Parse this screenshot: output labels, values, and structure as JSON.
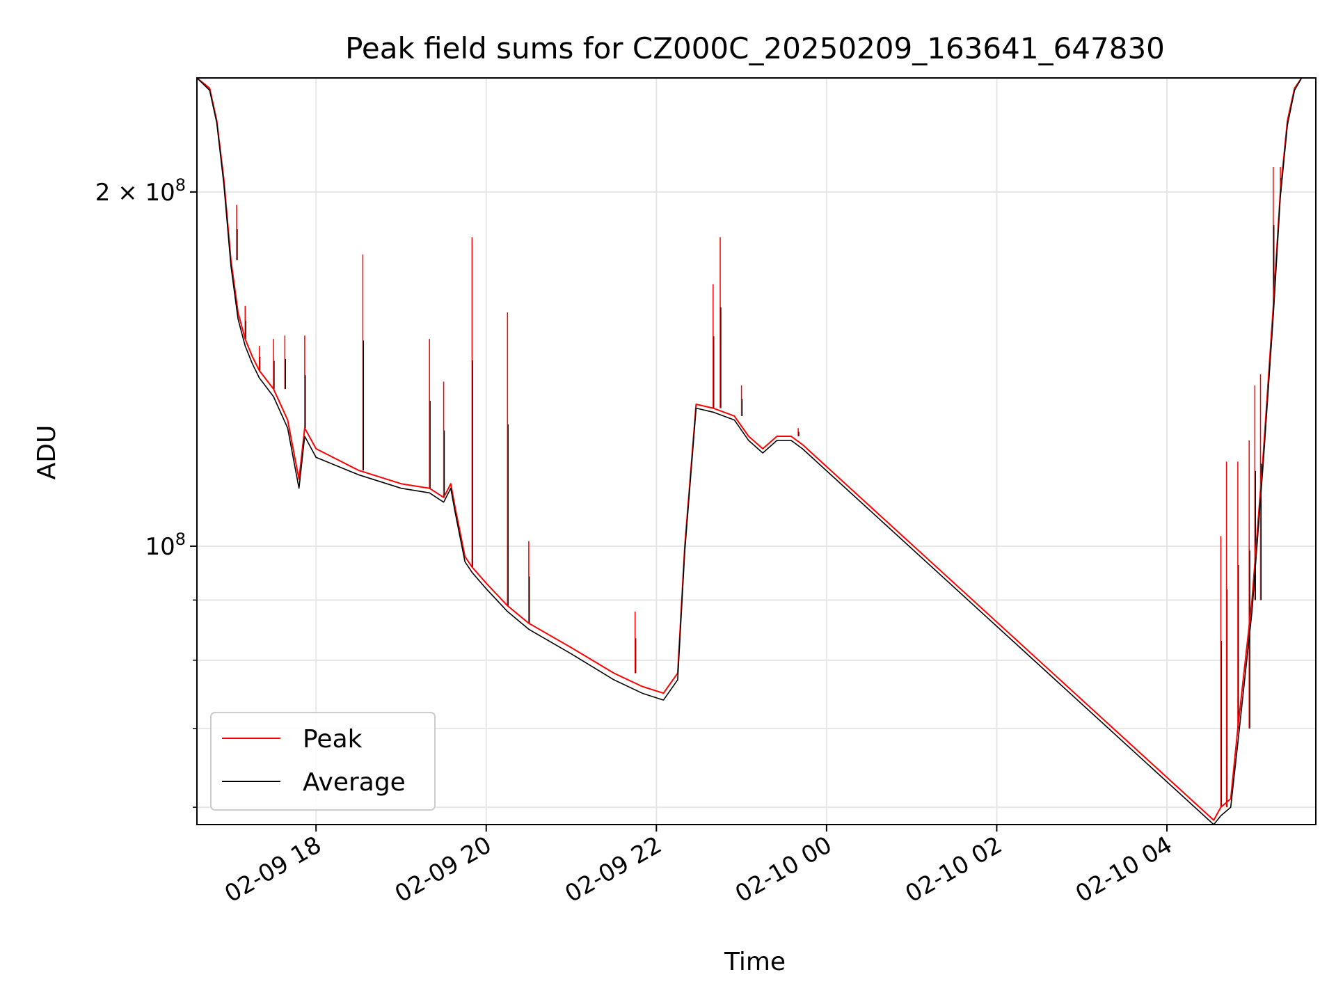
{
  "chart_data": {
    "type": "line",
    "title": "Peak field sums for CZ000C_20250209_163641_647830",
    "xlabel": "Time",
    "ylabel": "ADU",
    "yscale": "log",
    "ylim": [
      58000000,
      250000000
    ],
    "xlim": [
      "2025-02-09 16:36",
      "2025-02-10 05:45"
    ],
    "grid": true,
    "legend_position": "lower-left",
    "x_ticks": [
      {
        "t": "2025-02-09 18:00",
        "label": "02-09 18"
      },
      {
        "t": "2025-02-09 20:00",
        "label": "02-09 20"
      },
      {
        "t": "2025-02-09 22:00",
        "label": "02-09 22"
      },
      {
        "t": "2025-02-10 00:00",
        "label": "02-10 00"
      },
      {
        "t": "2025-02-10 02:00",
        "label": "02-10 02"
      },
      {
        "t": "2025-02-10 04:00",
        "label": "02-10 04"
      }
    ],
    "y_ticks_major": [
      {
        "value": 100000000,
        "label_base": "10",
        "label_exp": "8"
      },
      {
        "value": 200000000,
        "label_base": "2 × 10",
        "label_exp": "8"
      }
    ],
    "y_ticks_minor": [
      60000000,
      70000000,
      80000000,
      90000000
    ],
    "series": [
      {
        "name": "Peak",
        "color": "#ff0000",
        "x": [
          "2025-02-09 16:36",
          "2025-02-09 16:45",
          "2025-02-09 16:50",
          "2025-02-09 16:55",
          "2025-02-09 17:00",
          "2025-02-09 17:05",
          "2025-02-09 17:10",
          "2025-02-09 17:15",
          "2025-02-09 17:20",
          "2025-02-09 17:30",
          "2025-02-09 17:40",
          "2025-02-09 17:45",
          "2025-02-09 17:48",
          "2025-02-09 17:52",
          "2025-02-09 18:00",
          "2025-02-09 18:30",
          "2025-02-09 19:00",
          "2025-02-09 19:20",
          "2025-02-09 19:30",
          "2025-02-09 19:35",
          "2025-02-09 19:38",
          "2025-02-09 19:45",
          "2025-02-09 19:50",
          "2025-02-09 20:00",
          "2025-02-09 20:15",
          "2025-02-09 20:30",
          "2025-02-09 21:00",
          "2025-02-09 21:30",
          "2025-02-09 21:50",
          "2025-02-09 22:05",
          "2025-02-09 22:15",
          "2025-02-09 22:20",
          "2025-02-09 22:28",
          "2025-02-09 22:40",
          "2025-02-09 22:55",
          "2025-02-09 23:05",
          "2025-02-09 23:15",
          "2025-02-09 23:25",
          "2025-02-09 23:35",
          "2025-02-09 23:43",
          "2025-02-10 04:33",
          "2025-02-10 04:38",
          "2025-02-10 04:45",
          "2025-02-10 04:50",
          "2025-02-10 05:00",
          "2025-02-10 05:08",
          "2025-02-10 05:15",
          "2025-02-10 05:20",
          "2025-02-10 05:25",
          "2025-02-10 05:30",
          "2025-02-10 05:35",
          "2025-02-10 05:45"
        ],
        "values": [
          250000000,
          245000000,
          230000000,
          205000000,
          175000000,
          158000000,
          150000000,
          145000000,
          141000000,
          136000000,
          128000000,
          119000000,
          114000000,
          126000000,
          121000000,
          116000000,
          113000000,
          112000000,
          110000000,
          113000000,
          108000000,
          98000000,
          96000000,
          93000000,
          89000000,
          86000000,
          82000000,
          78000000,
          76000000,
          75000000,
          78000000,
          100000000,
          132000000,
          131000000,
          129000000,
          124000000,
          121000000,
          124000000,
          124000000,
          122000000,
          58500000,
          60000000,
          61000000,
          70000000,
          90000000,
          120000000,
          160000000,
          200000000,
          230000000,
          245000000,
          250000000,
          250000000
        ]
      },
      {
        "name": "Average",
        "color": "#000000",
        "x": [
          "2025-02-09 16:36",
          "2025-02-09 16:45",
          "2025-02-09 16:50",
          "2025-02-09 16:55",
          "2025-02-09 17:00",
          "2025-02-09 17:05",
          "2025-02-09 17:10",
          "2025-02-09 17:15",
          "2025-02-09 17:20",
          "2025-02-09 17:30",
          "2025-02-09 17:40",
          "2025-02-09 17:45",
          "2025-02-09 17:48",
          "2025-02-09 17:52",
          "2025-02-09 18:00",
          "2025-02-09 18:30",
          "2025-02-09 19:00",
          "2025-02-09 19:20",
          "2025-02-09 19:30",
          "2025-02-09 19:35",
          "2025-02-09 19:38",
          "2025-02-09 19:45",
          "2025-02-09 19:50",
          "2025-02-09 20:00",
          "2025-02-09 20:15",
          "2025-02-09 20:30",
          "2025-02-09 21:00",
          "2025-02-09 21:30",
          "2025-02-09 21:50",
          "2025-02-09 22:05",
          "2025-02-09 22:15",
          "2025-02-09 22:20",
          "2025-02-09 22:28",
          "2025-02-09 22:40",
          "2025-02-09 22:55",
          "2025-02-09 23:05",
          "2025-02-09 23:15",
          "2025-02-09 23:25",
          "2025-02-09 23:35",
          "2025-02-09 23:43",
          "2025-02-10 04:33",
          "2025-02-10 04:38",
          "2025-02-10 04:45",
          "2025-02-10 04:50",
          "2025-02-10 05:00",
          "2025-02-10 05:08",
          "2025-02-10 05:15",
          "2025-02-10 05:20",
          "2025-02-10 05:25",
          "2025-02-10 05:30",
          "2025-02-10 05:35",
          "2025-02-10 05:45"
        ],
        "values": [
          250000000,
          244000000,
          229000000,
          203000000,
          173000000,
          156000000,
          148000000,
          143000000,
          139000000,
          134000000,
          126000000,
          117000000,
          112000000,
          124000000,
          119000000,
          115000000,
          112000000,
          111000000,
          109000000,
          112000000,
          107000000,
          97000000,
          95000000,
          92000000,
          88000000,
          85000000,
          81000000,
          77000000,
          75000000,
          74000000,
          77000000,
          99000000,
          131000000,
          130000000,
          128000000,
          123000000,
          120000000,
          123000000,
          123000000,
          121000000,
          58000000,
          59000000,
          60000000,
          68000000,
          88000000,
          118000000,
          157000000,
          198000000,
          228000000,
          244000000,
          250000000,
          250000000
        ]
      }
    ],
    "spikes": [
      {
        "t": "2025-02-09 17:04",
        "value": 195000000
      },
      {
        "t": "2025-02-09 17:10",
        "value": 160000000
      },
      {
        "t": "2025-02-09 17:20",
        "value": 148000000
      },
      {
        "t": "2025-02-09 17:30",
        "value": 150000000
      },
      {
        "t": "2025-02-09 17:38",
        "value": 151000000
      },
      {
        "t": "2025-02-09 17:52",
        "value": 151000000
      },
      {
        "t": "2025-02-09 18:33",
        "value": 177000000
      },
      {
        "t": "2025-02-09 19:20",
        "value": 150000000
      },
      {
        "t": "2025-02-09 19:30",
        "value": 138000000
      },
      {
        "t": "2025-02-09 19:50",
        "value": 183000000
      },
      {
        "t": "2025-02-09 20:15",
        "value": 158000000
      },
      {
        "t": "2025-02-09 20:30",
        "value": 101000000
      },
      {
        "t": "2025-02-09 21:45",
        "value": 88000000
      },
      {
        "t": "2025-02-09 22:40",
        "value": 167000000
      },
      {
        "t": "2025-02-09 22:45",
        "value": 183000000
      },
      {
        "t": "2025-02-09 23:00",
        "value": 137000000
      },
      {
        "t": "2025-02-09 23:40",
        "value": 126000000
      },
      {
        "t": "2025-02-10 04:38",
        "value": 102000000
      },
      {
        "t": "2025-02-10 04:42",
        "value": 118000000
      },
      {
        "t": "2025-02-10 04:50",
        "value": 118000000
      },
      {
        "t": "2025-02-10 04:58",
        "value": 123000000
      },
      {
        "t": "2025-02-10 05:02",
        "value": 137000000
      },
      {
        "t": "2025-02-10 05:06",
        "value": 140000000
      },
      {
        "t": "2025-02-10 05:15",
        "value": 210000000
      },
      {
        "t": "2025-02-10 05:20",
        "value": 210000000
      }
    ]
  }
}
